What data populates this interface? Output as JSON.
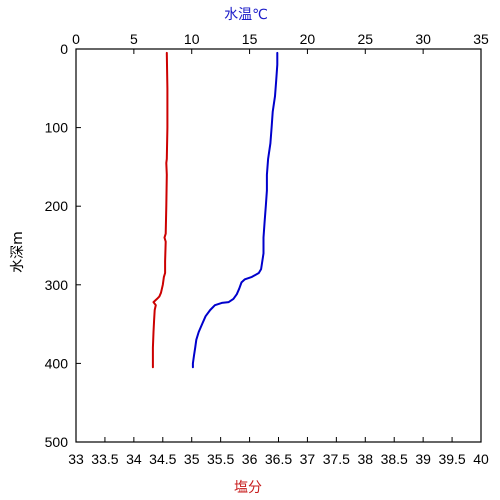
{
  "chart_data": {
    "type": "line",
    "title": "",
    "y_axis": {
      "label": "水深m",
      "range": [
        0,
        500
      ],
      "inverted": true,
      "ticks": [
        0,
        100,
        200,
        300,
        400,
        500
      ],
      "tick_labels": [
        "0",
        "100",
        "200",
        "300",
        "400",
        "500"
      ]
    },
    "x_top_axis": {
      "label": "水温℃",
      "range": [
        0,
        35
      ],
      "ticks": [
        0,
        5,
        10,
        15,
        20,
        25,
        30,
        35
      ],
      "tick_labels": [
        "0",
        "5",
        "10",
        "15",
        "20",
        "25",
        "30",
        "35"
      ]
    },
    "x_bottom_axis": {
      "label": "塩分",
      "range": [
        33,
        40
      ],
      "ticks": [
        33,
        33.5,
        34,
        34.5,
        35,
        35.5,
        36,
        36.5,
        37,
        37.5,
        38,
        38.5,
        39,
        39.5,
        40
      ],
      "tick_labels": [
        "33",
        "33.5",
        "34",
        "34.5",
        "35",
        "35.5",
        "36",
        "36.5",
        "37",
        "37.5",
        "38",
        "38.5",
        "39",
        "39.5",
        "40"
      ]
    },
    "grid": false,
    "series": [
      {
        "axis": "top",
        "color": "#0000cc",
        "points": [
          [
            17.4,
            5
          ],
          [
            17.4,
            20
          ],
          [
            17.3,
            40
          ],
          [
            17.2,
            60
          ],
          [
            17.0,
            80
          ],
          [
            16.9,
            100
          ],
          [
            16.8,
            120
          ],
          [
            16.6,
            140
          ],
          [
            16.5,
            160
          ],
          [
            16.5,
            180
          ],
          [
            16.4,
            200
          ],
          [
            16.3,
            220
          ],
          [
            16.2,
            240
          ],
          [
            16.2,
            260
          ],
          [
            16.0,
            280
          ],
          [
            15.8,
            285
          ],
          [
            15.2,
            290
          ],
          [
            14.6,
            293
          ],
          [
            14.3,
            297
          ],
          [
            14.1,
            305
          ],
          [
            13.9,
            312
          ],
          [
            13.6,
            318
          ],
          [
            13.2,
            322
          ],
          [
            12.6,
            323
          ],
          [
            12.0,
            326
          ],
          [
            11.6,
            332
          ],
          [
            11.2,
            340
          ],
          [
            10.9,
            350
          ],
          [
            10.6,
            360
          ],
          [
            10.4,
            370
          ],
          [
            10.3,
            380
          ],
          [
            10.2,
            390
          ],
          [
            10.1,
            400
          ],
          [
            10.1,
            405
          ]
        ]
      },
      {
        "axis": "bottom",
        "color": "#cc0000",
        "points": [
          [
            34.57,
            5
          ],
          [
            34.58,
            50
          ],
          [
            34.58,
            100
          ],
          [
            34.57,
            140
          ],
          [
            34.56,
            145
          ],
          [
            34.57,
            160
          ],
          [
            34.56,
            200
          ],
          [
            34.55,
            235
          ],
          [
            34.53,
            240
          ],
          [
            34.55,
            245
          ],
          [
            34.54,
            270
          ],
          [
            34.54,
            285
          ],
          [
            34.52,
            290
          ],
          [
            34.5,
            300
          ],
          [
            34.47,
            310
          ],
          [
            34.44,
            315
          ],
          [
            34.4,
            318
          ],
          [
            34.34,
            322
          ],
          [
            34.38,
            326
          ],
          [
            34.36,
            332
          ],
          [
            34.35,
            345
          ],
          [
            34.34,
            360
          ],
          [
            34.33,
            380
          ],
          [
            34.33,
            405
          ]
        ]
      }
    ]
  }
}
